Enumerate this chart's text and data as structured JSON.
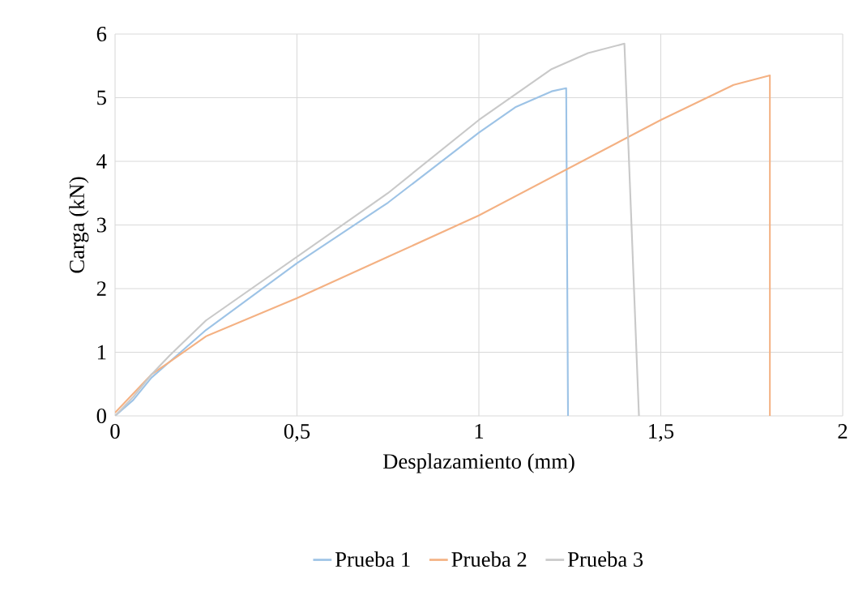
{
  "chart_data": {
    "type": "line",
    "xlabel": "Desplazamiento (mm)",
    "ylabel": "Carga (kN)",
    "xlim": [
      0,
      2
    ],
    "ylim": [
      0,
      6
    ],
    "xticks": [
      0,
      {
        "value": 0.5,
        "label": "0,5"
      },
      1,
      {
        "value": 1.5,
        "label": "1,5"
      },
      2
    ],
    "yticks": [
      0,
      1,
      2,
      3,
      4,
      5,
      6
    ],
    "grid": true,
    "legend": "bottom",
    "marker": "none",
    "line_style": "solid",
    "series": [
      {
        "name": "Prueba 1",
        "color": "#9dc3e6",
        "x": [
          0,
          0.05,
          0.1,
          0.15,
          0.25,
          0.5,
          0.75,
          1.0,
          1.1,
          1.2,
          1.24,
          1.245
        ],
        "values": [
          0,
          0.25,
          0.6,
          0.85,
          1.35,
          2.4,
          3.35,
          4.45,
          4.85,
          5.1,
          5.15,
          0
        ]
      },
      {
        "name": "Prueba 2",
        "color": "#f4b183",
        "x": [
          0,
          0.05,
          0.1,
          0.15,
          0.25,
          0.5,
          0.75,
          1.0,
          1.25,
          1.5,
          1.7,
          1.8,
          1.8
        ],
        "values": [
          0.05,
          0.35,
          0.65,
          0.85,
          1.25,
          1.85,
          2.5,
          3.15,
          3.9,
          4.65,
          5.2,
          5.35,
          0
        ]
      },
      {
        "name": "Prueba 3",
        "color": "#c9c9c9",
        "x": [
          0,
          0.05,
          0.1,
          0.15,
          0.25,
          0.5,
          0.75,
          1.0,
          1.1,
          1.2,
          1.3,
          1.4,
          1.44
        ],
        "values": [
          0,
          0.3,
          0.65,
          0.95,
          1.5,
          2.5,
          3.5,
          4.65,
          5.05,
          5.45,
          5.7,
          5.85,
          0
        ]
      }
    ]
  }
}
